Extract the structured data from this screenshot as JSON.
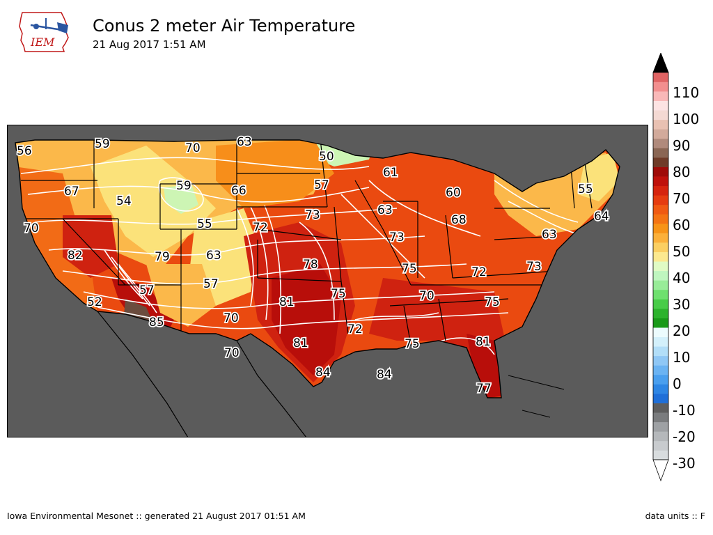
{
  "header": {
    "logo_text": "IEM",
    "title": "Conus 2 meter Air Temperature",
    "subtitle": "21 Aug 2017 1:51 AM"
  },
  "footer": {
    "left": "Iowa Environmental Mesonet :: generated 21 August 2017 01:51 AM",
    "right": "data units :: F"
  },
  "colors": {
    "ocean": "#5b5b5b",
    "t50": "#cdf5b4",
    "t55": "#fbe27a",
    "t60": "#fbb84a",
    "t65": "#f78e1a",
    "t70": "#f26b16",
    "t75": "#ea4a10",
    "t80": "#cf2210",
    "t85": "#b80e0a",
    "t90": "#6b4c3e"
  },
  "legend": {
    "tick_labels": [
      "110",
      "100",
      "90",
      "80",
      "70",
      "60",
      "50",
      "40",
      "30",
      "20",
      "10",
      "0",
      "-10",
      "-20",
      "-30"
    ],
    "bands": [
      "#d8dcde",
      "#c8cbce",
      "#b5b8bb",
      "#9ea1a4",
      "#7a7c7e",
      "#5e5e5e",
      "#1f6fd8",
      "#2e86e4",
      "#4a9fee",
      "#6bb3f2",
      "#8fc7f5",
      "#b2def8",
      "#d3f0fb",
      "#ecfbfd",
      "#199a19",
      "#2db32d",
      "#48cc48",
      "#6ee06e",
      "#98ec98",
      "#bff6bf",
      "#e0fbc4",
      "#fce98f",
      "#fbcf62",
      "#fbb03a",
      "#f79418",
      "#f47414",
      "#f05a13",
      "#e63c10",
      "#d6240e",
      "#bf110b",
      "#9f0b08",
      "#6f3b28",
      "#8a6654",
      "#b08a7c",
      "#d2aa9b",
      "#e9c1b2",
      "#f4d9d3",
      "#fde3e3",
      "#f9b8b8",
      "#f28f8f",
      "#e06464"
    ],
    "extend_max_color": "#000000",
    "extend_min_color": "#ffffff"
  },
  "map_labels": [
    {
      "text": "56"
    },
    {
      "text": "59"
    },
    {
      "text": "70"
    },
    {
      "text": "63"
    },
    {
      "text": "50"
    },
    {
      "text": "61"
    },
    {
      "text": "67"
    },
    {
      "text": "54"
    },
    {
      "text": "59"
    },
    {
      "text": "66"
    },
    {
      "text": "57"
    },
    {
      "text": "60"
    },
    {
      "text": "55"
    },
    {
      "text": "64"
    },
    {
      "text": "70"
    },
    {
      "text": "55"
    },
    {
      "text": "72"
    },
    {
      "text": "73"
    },
    {
      "text": "63"
    },
    {
      "text": "68"
    },
    {
      "text": "63"
    },
    {
      "text": "82"
    },
    {
      "text": "79"
    },
    {
      "text": "63"
    },
    {
      "text": "73"
    },
    {
      "text": "78"
    },
    {
      "text": "75"
    },
    {
      "text": "72"
    },
    {
      "text": "73"
    },
    {
      "text": "57"
    },
    {
      "text": "57"
    },
    {
      "text": "75"
    },
    {
      "text": "70"
    },
    {
      "text": "52"
    },
    {
      "text": "81"
    },
    {
      "text": "75"
    },
    {
      "text": "85"
    },
    {
      "text": "70"
    },
    {
      "text": "72"
    },
    {
      "text": "70"
    },
    {
      "text": "81"
    },
    {
      "text": "75"
    },
    {
      "text": "81"
    },
    {
      "text": "84"
    },
    {
      "text": "84"
    },
    {
      "text": "77"
    }
  ]
}
